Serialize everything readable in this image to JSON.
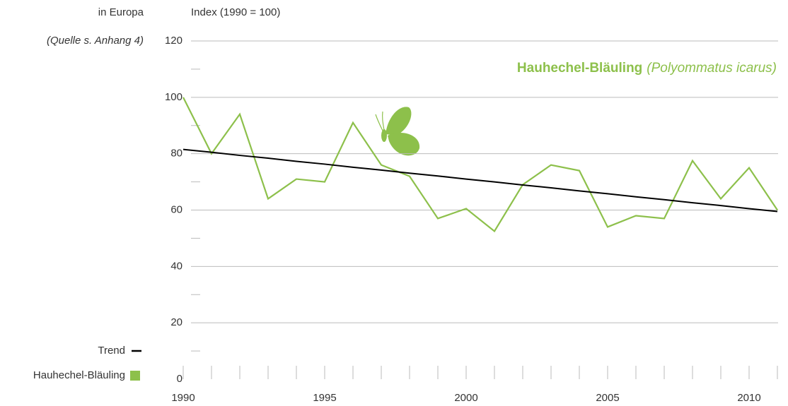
{
  "chart_data": {
    "type": "line",
    "title": "Hauhechel-Bläuling",
    "title_latin": "(Polyommatus icarus)",
    "region_label": "in Europa",
    "source": "(Quelle s. Anhang 4)",
    "ylabel": "Index (1990 = 100)",
    "x": [
      1990,
      1991,
      1992,
      1993,
      1994,
      1995,
      1996,
      1997,
      1998,
      1999,
      2000,
      2001,
      2002,
      2003,
      2004,
      2005,
      2006,
      2007,
      2008,
      2009,
      2010,
      2011
    ],
    "xlim": [
      1990,
      2011
    ],
    "xticks": [
      1990,
      1995,
      2000,
      2005,
      2010
    ],
    "ylim": [
      0,
      120
    ],
    "yticks": [
      0,
      20,
      40,
      60,
      80,
      100,
      120
    ],
    "grid": true,
    "legend": "bottom-left",
    "series": [
      {
        "name": "Hauhechel-Bläuling",
        "color": "#8dc04b",
        "values": [
          100,
          80,
          94,
          64,
          71,
          70,
          91,
          76,
          72,
          57,
          60.5,
          52.5,
          69,
          76,
          74,
          54,
          58,
          57,
          77.5,
          64,
          75,
          60
        ]
      },
      {
        "name": "Trend",
        "color": "#000000",
        "values": [
          81.5,
          80.5,
          79.4,
          78.4,
          77.3,
          76.3,
          75.2,
          74.2,
          73.1,
          72.1,
          71.0,
          70.0,
          68.9,
          67.9,
          66.8,
          65.8,
          64.7,
          63.7,
          62.6,
          61.6,
          60.5,
          59.5
        ]
      }
    ]
  }
}
